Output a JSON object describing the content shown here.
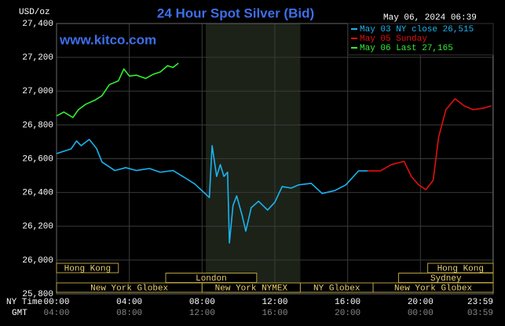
{
  "chart_data": {
    "type": "line",
    "title": "24 Hour Spot Silver (Bid)",
    "unit_label": "USD/oz",
    "timestamp": "May 06, 2024 06:39",
    "watermark": "www.kitco.com",
    "xlabel": "NY Time",
    "x2label": "GMT",
    "xlim": [
      0,
      24
    ],
    "xticks": [
      {
        "value": 0,
        "label": "00:00"
      },
      {
        "value": 4,
        "label": "04:00"
      },
      {
        "value": 8,
        "label": "08:00"
      },
      {
        "value": 12,
        "label": "12:00"
      },
      {
        "value": 16,
        "label": "16:00"
      },
      {
        "value": 20,
        "label": "20:00"
      },
      {
        "value": 23.98,
        "label": "23:59"
      }
    ],
    "gmt_ticks": [
      "04:00",
      "08:00",
      "12:00",
      "16:00",
      "20:00",
      "00:00",
      "03:59"
    ],
    "ylim": [
      25800,
      27400
    ],
    "yticks": [
      {
        "value": 25800,
        "label": "25,800"
      },
      {
        "value": 26000,
        "label": "26,000"
      },
      {
        "value": 26200,
        "label": "26,200"
      },
      {
        "value": 26400,
        "label": "26,400"
      },
      {
        "value": 26600,
        "label": "26,600"
      },
      {
        "value": 26800,
        "label": "26,800"
      },
      {
        "value": 27000,
        "label": "27,000"
      },
      {
        "value": 27200,
        "label": "27,200"
      },
      {
        "value": 27400,
        "label": "27,400"
      }
    ],
    "grid": true,
    "highlight_range": [
      8.2,
      13.4
    ],
    "series": [
      {
        "name": "May 03 NY close 26,515",
        "color": "#1ab4f0",
        "x": [
          0,
          0.8,
          1.1,
          1.35,
          1.8,
          2.2,
          2.5,
          3.2,
          3.8,
          4.4,
          5.1,
          5.7,
          6.4,
          7.0,
          7.6,
          8.2,
          8.4,
          8.55,
          8.8,
          9.0,
          9.2,
          9.4,
          9.5,
          9.7,
          9.9,
          10.2,
          10.4,
          10.7,
          11.1,
          11.6,
          12.0,
          12.4,
          12.9,
          13.3,
          14.0,
          14.6,
          15.3,
          15.9,
          16.6,
          17.1
        ],
        "values": [
          26630,
          26658,
          26705,
          26677,
          26714,
          26660,
          26580,
          26530,
          26547,
          26530,
          26542,
          26520,
          26530,
          26491,
          26450,
          26390,
          26370,
          26677,
          26495,
          26565,
          26495,
          26520,
          26101,
          26324,
          26380,
          26264,
          26171,
          26310,
          26348,
          26296,
          26343,
          26435,
          26426,
          26445,
          26454,
          26394,
          26412,
          26445,
          26528,
          26528
        ]
      },
      {
        "name": "May 05 Sunday",
        "color": "#e01010",
        "x": [
          17.1,
          17.8,
          18.4,
          19.1,
          19.5,
          19.9,
          20.3,
          20.7,
          21.0,
          21.4,
          21.9,
          22.4,
          22.9,
          23.5,
          23.9
        ],
        "values": [
          26528,
          26528,
          26565,
          26584,
          26495,
          26445,
          26417,
          26472,
          26728,
          26890,
          26955,
          26913,
          26890,
          26900,
          26913
        ]
      },
      {
        "name": "May 06 Last 27,165",
        "color": "#33ee33",
        "x": [
          0,
          0.4,
          0.9,
          1.2,
          1.6,
          2.1,
          2.5,
          2.9,
          3.4,
          3.7,
          4.0,
          4.4,
          4.9,
          5.3,
          5.7,
          6.1,
          6.4,
          6.7
        ],
        "values": [
          26853,
          26876,
          26844,
          26890,
          26922,
          26946,
          26973,
          27038,
          27061,
          27131,
          27089,
          27094,
          27075,
          27099,
          27113,
          27150,
          27140,
          27165
        ]
      }
    ],
    "sessions": [
      {
        "name": "Hong Kong",
        "start": 0,
        "end": 3.4,
        "row": 0
      },
      {
        "name": "London",
        "start": 6.0,
        "end": 11.0,
        "row": 1
      },
      {
        "name": "New York Globex",
        "start": 0,
        "end": 8.0,
        "row": 2
      },
      {
        "name": "New York NYMEX",
        "start": 8.0,
        "end": 13.4,
        "row": 2
      },
      {
        "name": "NY Globex",
        "start": 13.4,
        "end": 17.4,
        "row": 2
      },
      {
        "name": "Hong Kong",
        "start": 20.4,
        "end": 24,
        "row": 0
      },
      {
        "name": "Sydney",
        "start": 18.8,
        "end": 24,
        "row": 1
      },
      {
        "name": "New York Globex",
        "start": 17.4,
        "end": 24,
        "row": 2
      }
    ]
  }
}
